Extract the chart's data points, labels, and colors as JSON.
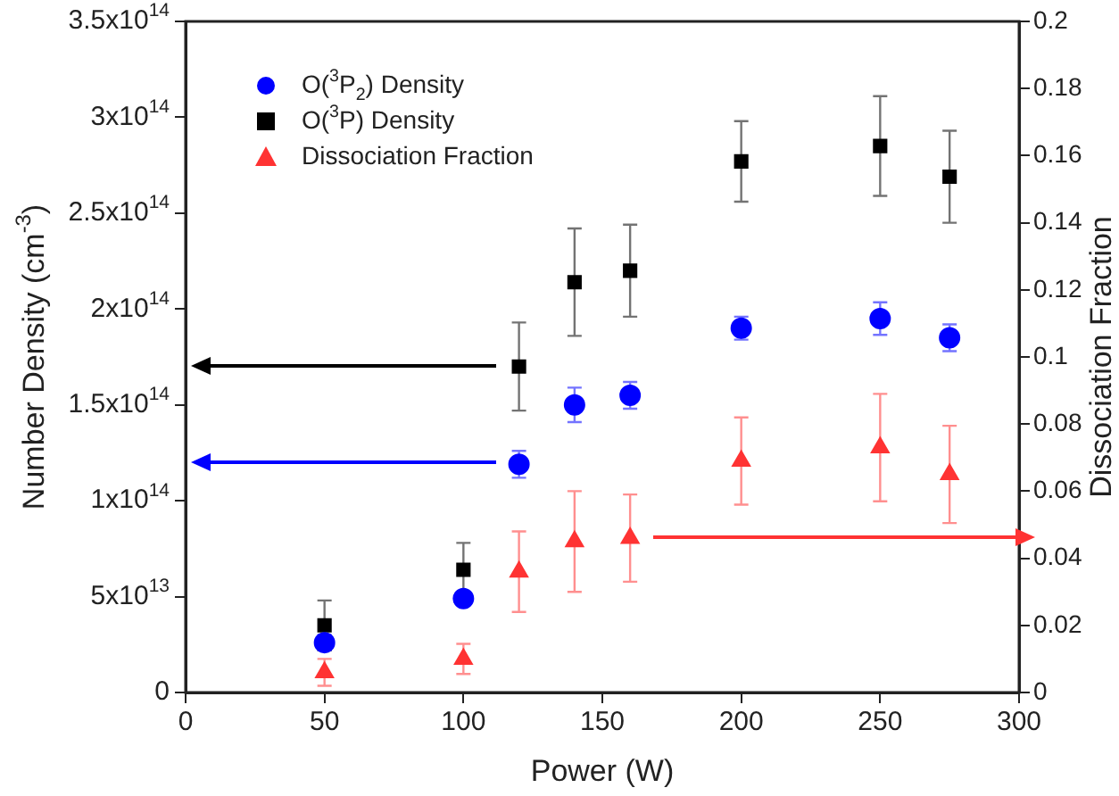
{
  "chart_data": {
    "type": "scatter",
    "xlabel": "Power (W)",
    "ylabel": "Number Density (cm$^{-3}$)",
    "y2label": "Dissociation Fraction",
    "x": [
      50,
      100,
      120,
      140,
      160,
      200,
      250,
      275
    ],
    "series": [
      {
        "name": "O($^{3}$P$_{2}$) Density",
        "color": "#0000ff",
        "marker": "circle",
        "values": [
          26000000000000.0,
          49000000000000.0,
          119000000000000.0,
          150000000000000.0,
          155000000000000.0,
          190000000000000.0,
          195000000000000.0,
          185000000000000.0
        ],
        "errors": [
          4000000000000.0,
          null,
          7000000000000.0,
          9000000000000.0,
          7000000000000.0,
          6000000000000.0,
          8500000000000.0,
          7000000000000.0
        ]
      },
      {
        "name": "O($^{3}$P) Density",
        "color": "#000000",
        "marker": "square",
        "values": [
          35000000000000.0,
          64000000000000.0,
          170000000000000.0,
          214000000000000.0,
          220000000000000.0,
          277000000000000.0,
          285000000000000.0,
          269000000000000.0
        ],
        "errors": [
          13000000000000.0,
          14000000000000.0,
          23000000000000.0,
          28000000000000.0,
          24000000000000.0,
          21000000000000.0,
          26000000000000.0,
          24000000000000.0
        ]
      },
      {
        "name": "Dissociation Fraction",
        "color": "#ff3333",
        "marker": "triangle",
        "axis": "y2",
        "values": [
          0.006,
          0.01,
          0.036,
          0.045,
          0.046,
          0.069,
          0.073,
          0.065
        ],
        "errors": [
          0.004,
          0.0045,
          0.012,
          0.015,
          0.013,
          0.013,
          0.016,
          0.0145
        ]
      }
    ],
    "xlim": [
      0,
      300
    ],
    "xticks": [
      0,
      50,
      100,
      150,
      200,
      250,
      300
    ],
    "ylim": [
      0,
      350000000000000.0
    ],
    "yticks": [
      0,
      {
        "value": 50000000000000.0,
        "label": "5x10$^{13}$"
      },
      {
        "value": 100000000000000.0,
        "label": "1x10$^{14}$"
      },
      {
        "value": 150000000000000.0,
        "label": "1.5x10$^{14}$"
      },
      {
        "value": 200000000000000.0,
        "label": "2x10$^{14}$"
      },
      {
        "value": 250000000000000.0,
        "label": "2.5x10$^{14}$"
      },
      {
        "value": 300000000000000.0,
        "label": "3x10$^{14}$"
      },
      {
        "value": 350000000000000.0,
        "label": "3.5x10$^{14}$"
      }
    ],
    "y2lim": [
      0,
      0.2
    ],
    "y2ticks": [
      0,
      0.02,
      0.04,
      0.06,
      0.08,
      0.1,
      0.12,
      0.14,
      0.16,
      0.18,
      0.2
    ],
    "legend": "top left",
    "grid": false
  }
}
